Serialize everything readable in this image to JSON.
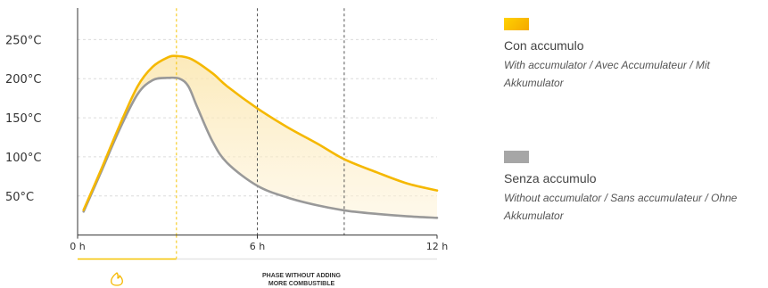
{
  "chart_data": {
    "type": "area",
    "x_unit": "h",
    "x_range": [
      0,
      12
    ],
    "y_range": [
      0,
      290
    ],
    "y_ticks": [
      {
        "value": 50,
        "label": "50°C"
      },
      {
        "value": 100,
        "label": "100°C"
      },
      {
        "value": 150,
        "label": "150°C"
      },
      {
        "value": 200,
        "label": "200°C"
      },
      {
        "value": 250,
        "label": "250°C"
      }
    ],
    "x_ticks": [
      {
        "value": 0,
        "label": "0 h"
      },
      {
        "value": 6,
        "label": "6 h"
      },
      {
        "value": 12,
        "label": "12 h"
      }
    ],
    "vertical_markers": [
      {
        "x": 3.3,
        "color": "#f5c400",
        "style": "dashed"
      },
      {
        "x": 6,
        "color": "#555555",
        "style": "dashed"
      },
      {
        "x": 8.9,
        "color": "#555555",
        "style": "dashed"
      }
    ],
    "grid": "horizontal dashed",
    "series": [
      {
        "name": "Con accumulo",
        "color": "#f5b800",
        "points": [
          [
            0.2,
            32
          ],
          [
            0.8,
            85
          ],
          [
            1.4,
            140
          ],
          [
            2.0,
            190
          ],
          [
            2.5,
            215
          ],
          [
            3.0,
            227
          ],
          [
            3.3,
            229
          ],
          [
            3.8,
            225
          ],
          [
            4.5,
            207
          ],
          [
            5.0,
            190
          ],
          [
            6.0,
            162
          ],
          [
            7.0,
            138
          ],
          [
            8.0,
            117
          ],
          [
            8.9,
            97
          ],
          [
            10.0,
            80
          ],
          [
            11.0,
            66
          ],
          [
            12.0,
            57
          ]
        ]
      },
      {
        "name": "Senza accumulo",
        "color": "#999999",
        "points": [
          [
            0.2,
            30
          ],
          [
            0.8,
            82
          ],
          [
            1.4,
            135
          ],
          [
            2.0,
            180
          ],
          [
            2.5,
            198
          ],
          [
            3.0,
            201
          ],
          [
            3.4,
            200
          ],
          [
            3.7,
            190
          ],
          [
            4.0,
            163
          ],
          [
            4.5,
            120
          ],
          [
            5.0,
            92
          ],
          [
            6.0,
            63
          ],
          [
            7.0,
            48
          ],
          [
            8.0,
            38
          ],
          [
            9.0,
            31
          ],
          [
            10.0,
            27
          ],
          [
            11.0,
            24
          ],
          [
            12.0,
            22
          ]
        ]
      }
    ]
  },
  "legend": [
    {
      "title": "Con accumulo",
      "subtitle": "With accumulator / Avec Accumulateur / Mit Akkumulator",
      "color": "#f5b800"
    },
    {
      "title": "Senza accumulo",
      "subtitle": "Without accumulator / Sans accumulateur / Ohne Akkumulator",
      "color": "#a6a6a6"
    }
  ],
  "phase": {
    "icon": "flame-icon",
    "label": "PHASE WITHOUT ADDING\nMORE COMBUSTIBLE"
  }
}
